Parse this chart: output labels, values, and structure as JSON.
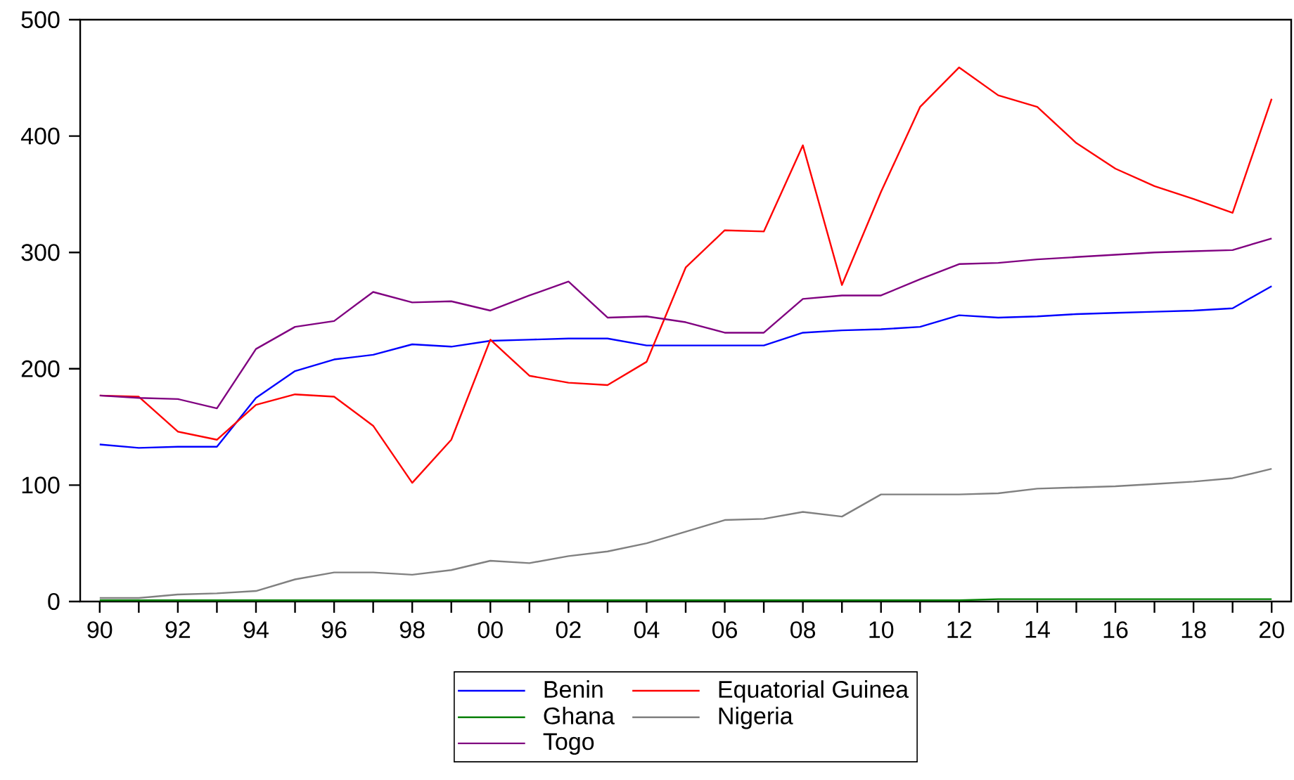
{
  "chart_data": {
    "type": "line",
    "x": [
      1990,
      1991,
      1992,
      1993,
      1994,
      1995,
      1996,
      1997,
      1998,
      1999,
      2000,
      2001,
      2002,
      2003,
      2004,
      2005,
      2006,
      2007,
      2008,
      2009,
      2010,
      2011,
      2012,
      2013,
      2014,
      2015,
      2016,
      2017,
      2018,
      2019,
      2020
    ],
    "series": [
      {
        "name": "Benin",
        "color": "#0000ff",
        "values": [
          135,
          132,
          133,
          133,
          175,
          198,
          208,
          212,
          221,
          219,
          224,
          225,
          226,
          226,
          220,
          220,
          220,
          220,
          231,
          233,
          234,
          236,
          246,
          244,
          245,
          247,
          248,
          249,
          250,
          252,
          271
        ]
      },
      {
        "name": "Equatorial Guinea",
        "color": "#ff0000",
        "values": [
          177,
          176,
          146,
          139,
          169,
          178,
          176,
          151,
          102,
          139,
          225,
          194,
          188,
          186,
          206,
          287,
          319,
          318,
          392,
          272,
          352,
          425,
          459,
          435,
          425,
          394,
          372,
          357,
          346,
          334,
          432
        ]
      },
      {
        "name": "Ghana",
        "color": "#008000",
        "values": [
          1,
          1,
          1,
          1,
          1,
          1,
          1,
          1,
          1,
          1,
          1,
          1,
          1,
          1,
          1,
          1,
          1,
          1,
          1,
          1,
          1,
          1,
          1,
          2,
          2,
          2,
          2,
          2,
          2,
          2,
          2
        ]
      },
      {
        "name": "Nigeria",
        "color": "#808080",
        "values": [
          3,
          3,
          6,
          7,
          9,
          19,
          25,
          25,
          23,
          27,
          35,
          33,
          39,
          43,
          50,
          60,
          70,
          71,
          77,
          73,
          92,
          92,
          92,
          93,
          97,
          98,
          99,
          101,
          103,
          106,
          114
        ]
      },
      {
        "name": "Togo",
        "color": "#800080",
        "values": [
          177,
          175,
          174,
          166,
          217,
          236,
          241,
          266,
          257,
          258,
          250,
          263,
          275,
          244,
          245,
          240,
          231,
          231,
          260,
          263,
          263,
          277,
          290,
          291,
          294,
          296,
          298,
          300,
          301,
          302,
          312
        ]
      }
    ],
    "xlim": [
      1989.5,
      2020.5
    ],
    "xticks": [
      {
        "value": 1990,
        "label": "90"
      },
      {
        "value": 1991,
        "label": null
      },
      {
        "value": 1992,
        "label": "92"
      },
      {
        "value": 1993,
        "label": null
      },
      {
        "value": 1994,
        "label": "94"
      },
      {
        "value": 1995,
        "label": null
      },
      {
        "value": 1996,
        "label": "96"
      },
      {
        "value": 1997,
        "label": null
      },
      {
        "value": 1998,
        "label": "98"
      },
      {
        "value": 1999,
        "label": null
      },
      {
        "value": 2000,
        "label": "00"
      },
      {
        "value": 2001,
        "label": null
      },
      {
        "value": 2002,
        "label": "02"
      },
      {
        "value": 2003,
        "label": null
      },
      {
        "value": 2004,
        "label": "04"
      },
      {
        "value": 2005,
        "label": null
      },
      {
        "value": 2006,
        "label": "06"
      },
      {
        "value": 2007,
        "label": null
      },
      {
        "value": 2008,
        "label": "08"
      },
      {
        "value": 2009,
        "label": null
      },
      {
        "value": 2010,
        "label": "10"
      },
      {
        "value": 2011,
        "label": null
      },
      {
        "value": 2012,
        "label": "12"
      },
      {
        "value": 2013,
        "label": null
      },
      {
        "value": 2014,
        "label": "14"
      },
      {
        "value": 2015,
        "label": null
      },
      {
        "value": 2016,
        "label": "16"
      },
      {
        "value": 2017,
        "label": null
      },
      {
        "value": 2018,
        "label": "18"
      },
      {
        "value": 2019,
        "label": null
      },
      {
        "value": 2020,
        "label": "20"
      }
    ],
    "ylim": [
      0,
      500
    ],
    "yticks": [
      0,
      100,
      200,
      300,
      400,
      500
    ],
    "legend": "bottom",
    "line_style": "solid",
    "marker": "none"
  }
}
